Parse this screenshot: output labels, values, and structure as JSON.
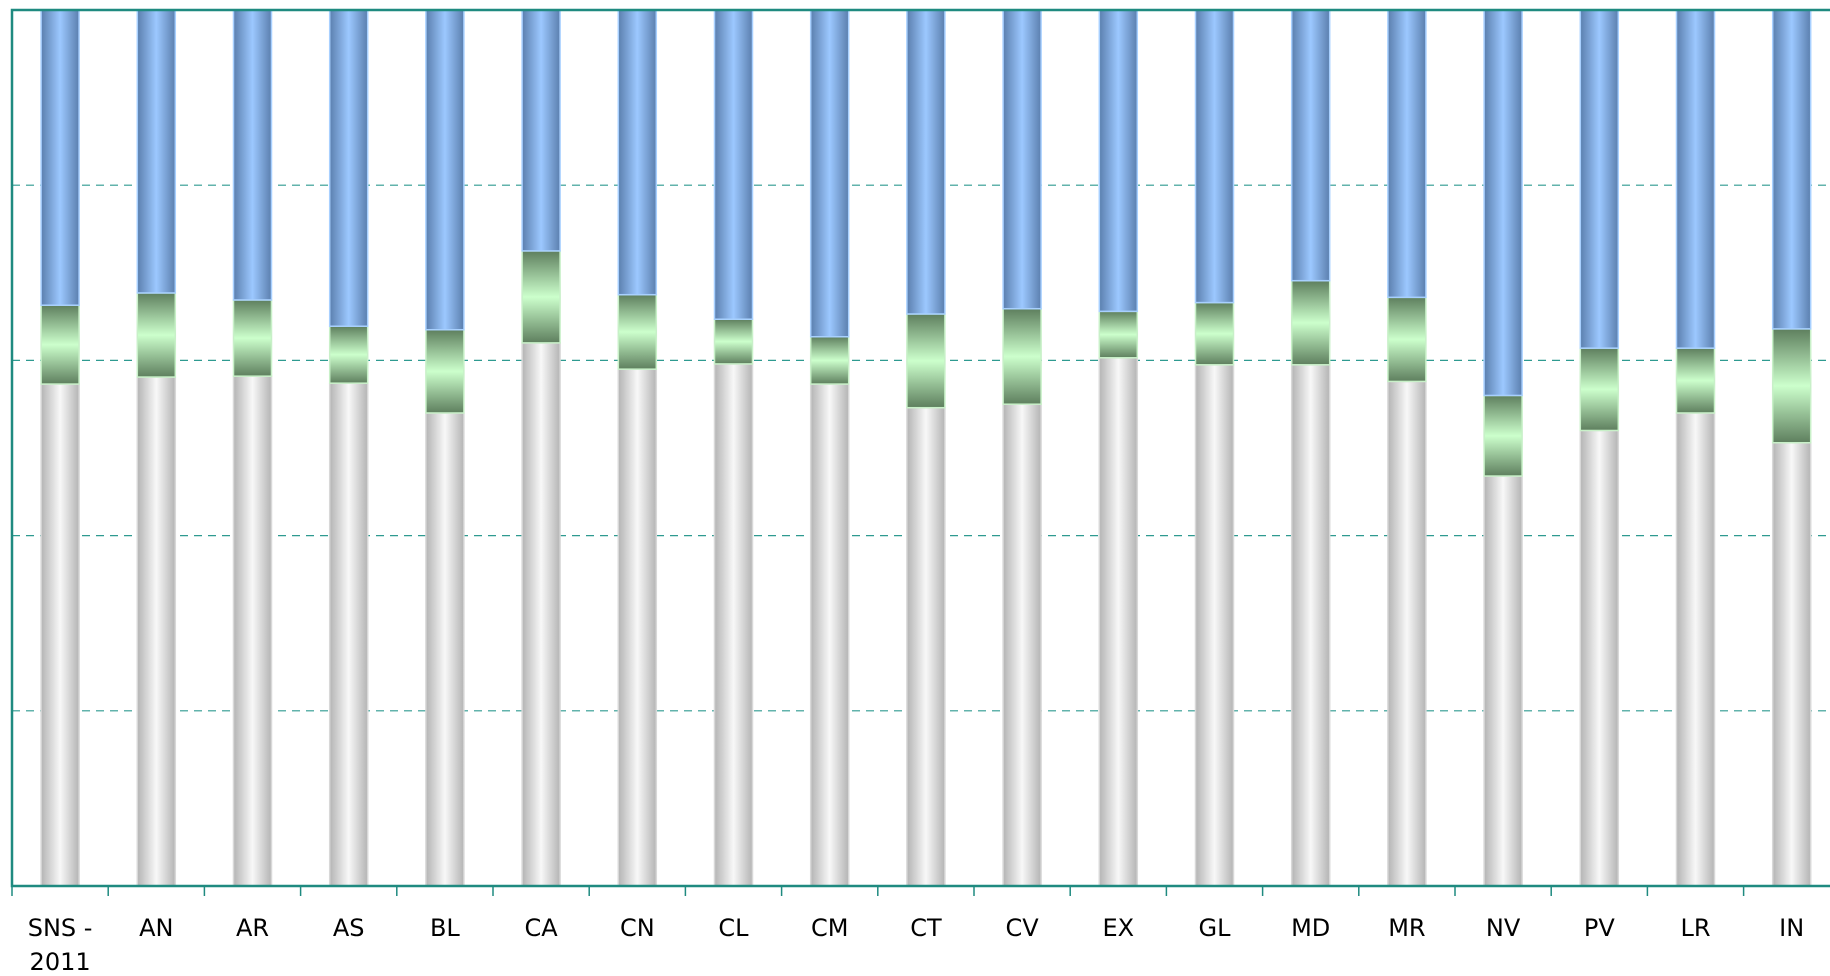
{
  "chart_data": {
    "type": "bar",
    "stacked": true,
    "percent_stacked": true,
    "categories": [
      "SNS - 2011",
      "AN",
      "AR",
      "AS",
      "BL",
      "CA",
      "CN",
      "CL",
      "CM",
      "CT",
      "CV",
      "EX",
      "GL",
      "MD",
      "MR",
      "NV",
      "PV",
      "LR",
      "IN"
    ],
    "category_lines": [
      [
        "SNS -",
        "2011"
      ],
      [
        "AN"
      ],
      [
        "AR"
      ],
      [
        "AS"
      ],
      [
        "BL"
      ],
      [
        "CA"
      ],
      [
        "CN"
      ],
      [
        "CL"
      ],
      [
        "CM"
      ],
      [
        "CT"
      ],
      [
        "CV"
      ],
      [
        "EX"
      ],
      [
        "GL"
      ],
      [
        "MD"
      ],
      [
        "MR"
      ],
      [
        "NV"
      ],
      [
        "PV"
      ],
      [
        "LR"
      ],
      [
        "IN"
      ]
    ],
    "series": [
      {
        "values": [
          57.3,
          58.1,
          58.2,
          57.4,
          54.0,
          62.0,
          59.0,
          59.6,
          57.3,
          54.6,
          55.0,
          60.3,
          59.5,
          59.5,
          57.6,
          46.8,
          52.0,
          54.0,
          50.6
        ],
        "color": "#c8c8c8"
      },
      {
        "values": [
          9.0,
          9.6,
          8.7,
          6.5,
          9.5,
          10.5,
          8.5,
          5.1,
          5.4,
          10.7,
          10.9,
          5.3,
          7.1,
          9.6,
          9.6,
          9.2,
          9.4,
          7.4,
          13.0
        ],
        "color": "#a8f0a8"
      },
      {
        "values": [
          33.7,
          32.3,
          33.1,
          36.1,
          36.5,
          27.5,
          32.5,
          35.3,
          37.3,
          34.7,
          34.1,
          34.4,
          33.4,
          30.9,
          32.8,
          44.0,
          38.6,
          38.6,
          36.4
        ],
        "color": "#8ab8ee"
      }
    ],
    "ylim": [
      0,
      100
    ],
    "grid": true,
    "legend": "none"
  }
}
